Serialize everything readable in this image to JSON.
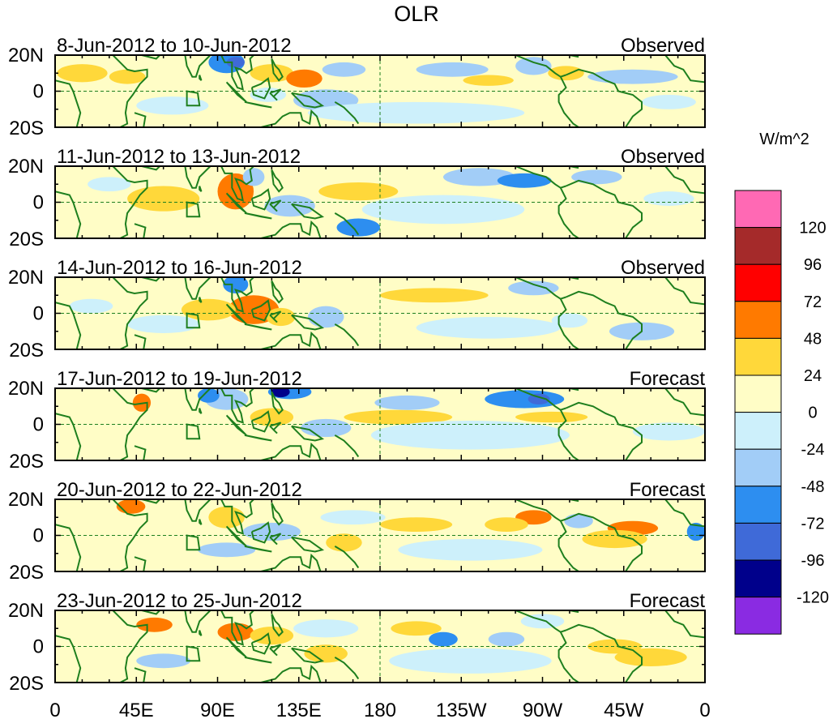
{
  "title": "OLR",
  "units_label": "W/m^2",
  "lat_labels": [
    "20N",
    "0",
    "20S"
  ],
  "lon_labels": [
    "0",
    "45E",
    "90E",
    "135E",
    "180",
    "135W",
    "90W",
    "45W",
    "0"
  ],
  "panels": [
    {
      "dates": "8-Jun-2012 to 10-Jun-2012",
      "status": "Observed"
    },
    {
      "dates": "11-Jun-2012 to 13-Jun-2012",
      "status": "Observed"
    },
    {
      "dates": "14-Jun-2012 to 16-Jun-2012",
      "status": "Observed"
    },
    {
      "dates": "17-Jun-2012 to 19-Jun-2012",
      "status": "Forecast"
    },
    {
      "dates": "20-Jun-2012 to 22-Jun-2012",
      "status": "Forecast"
    },
    {
      "dates": "23-Jun-2012 to 25-Jun-2012",
      "status": "Forecast"
    }
  ],
  "colorbar": {
    "levels": [
      "120",
      "96",
      "72",
      "48",
      "24",
      "0",
      "-24",
      "-48",
      "-72",
      "-96",
      "-120"
    ],
    "colors": [
      "#ff69b4",
      "#a52a2a",
      "#ff0000",
      "#ff7a00",
      "#ffd83a",
      "#fffdc6",
      "#cdf0fb",
      "#a2cdf7",
      "#2d8ef0",
      "#3f6ad8",
      "#00008b",
      "#8a2be2"
    ]
  },
  "map_colors": {
    "background": "#fffdc6",
    "neg_light": "#cdf0fb",
    "neg_mid": "#a2cdf7",
    "neg_strong": "#2d8ef0",
    "neg_deep": "#3f6ad8",
    "neg_extreme": "#00008b",
    "pos_mid": "#ffd83a",
    "pos_strong": "#ff7a00",
    "pos_high": "#ff0000",
    "coast": "#1e7f1e"
  }
}
